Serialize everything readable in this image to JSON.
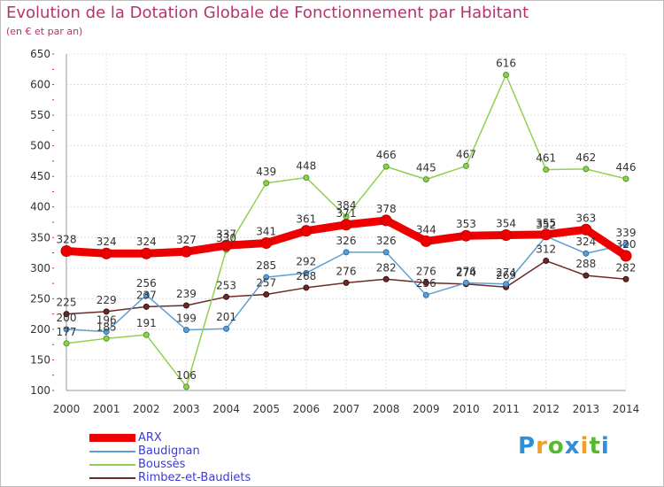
{
  "header": {
    "title": "Evolution de la Dotation Globale de Fonctionnement par Habitant",
    "subtitle": "(en € et par an)"
  },
  "logo": {
    "text": "Proxiti"
  },
  "chart_data": {
    "type": "line",
    "x": [
      "2000",
      "2001",
      "2002",
      "2003",
      "2004",
      "2005",
      "2006",
      "2007",
      "2008",
      "2009",
      "2010",
      "2011",
      "2012",
      "2013",
      "2014"
    ],
    "ylim": [
      100,
      650
    ],
    "yticks": [
      "100",
      "150",
      "200",
      "250",
      "300",
      "350",
      "400",
      "450",
      "500",
      "550",
      "600",
      "650"
    ],
    "grid": true,
    "legend_position": "bottom-left",
    "series": [
      {
        "name": "ARX",
        "color": "#ee0000",
        "values": [
          328,
          324,
          324,
          327,
          337,
          341,
          361,
          371,
          378,
          344,
          353,
          354,
          355,
          363,
          320
        ],
        "labels": [
          "328",
          "324",
          "324",
          "327",
          "337",
          "341",
          "361",
          "371",
          "378",
          "344",
          "353",
          "354",
          "355",
          "363",
          "320"
        ]
      },
      {
        "name": "Baudignan",
        "color": "#5f9ed1",
        "values": [
          200,
          196,
          256,
          199,
          201,
          285,
          292,
          326,
          326,
          256,
          276,
          274,
          352,
          324,
          339
        ],
        "labels": [
          "200",
          "196",
          "256",
          "199",
          "201",
          "285",
          "292",
          "326",
          "326",
          "256",
          "276",
          "274",
          "352",
          "324",
          "339"
        ]
      },
      {
        "name": "Boussès",
        "color": "#8fd14f",
        "values": [
          177,
          185,
          191,
          106,
          330,
          439,
          448,
          384,
          466,
          445,
          467,
          616,
          461,
          462,
          446
        ],
        "labels": [
          "177",
          "185",
          "191",
          "106",
          "330",
          "439",
          "448",
          "384",
          "466",
          "445",
          "467",
          "616",
          "461",
          "462",
          "446"
        ]
      },
      {
        "name": "Rimbez-et-Baudiets",
        "color": "#6b2a2a",
        "values": [
          225,
          229,
          237,
          239,
          253,
          257,
          268,
          276,
          282,
          276,
          274,
          269,
          312,
          288,
          282
        ],
        "labels": [
          "225",
          "229",
          "237",
          "239",
          "253",
          "257",
          "268",
          "276",
          "282",
          "276",
          "274",
          "269",
          "312",
          "288",
          "282"
        ]
      }
    ]
  }
}
